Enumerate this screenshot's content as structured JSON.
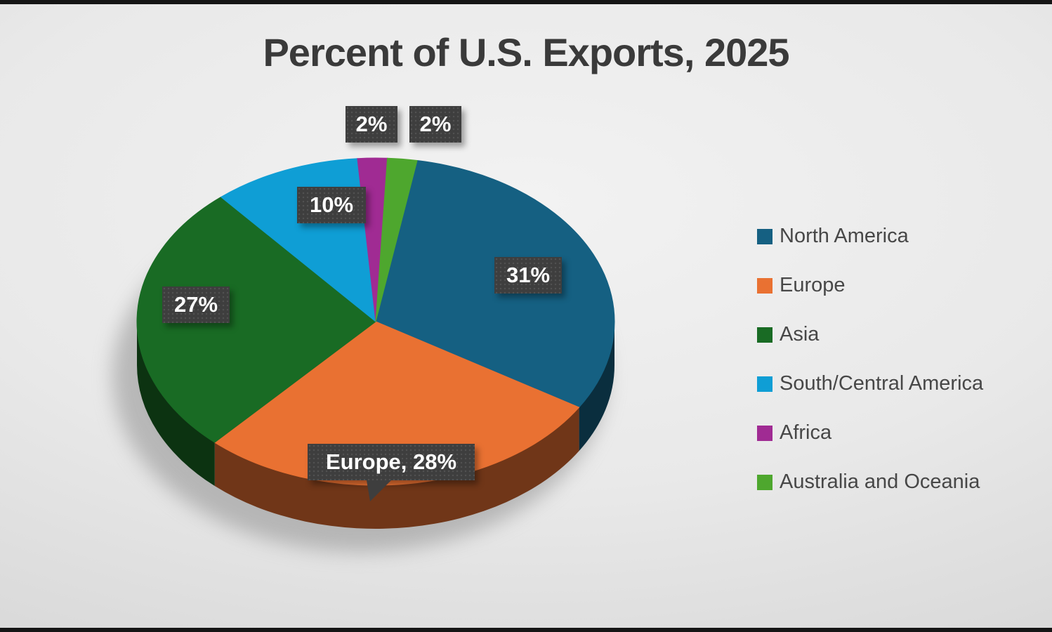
{
  "chart_data": {
    "type": "pie",
    "title": "Percent of U.S. Exports, 2025",
    "categories": [
      "North America",
      "Europe",
      "Asia",
      "South/Central America",
      "Africa",
      "Australia and Oceania"
    ],
    "values": [
      31,
      28,
      27,
      10,
      2,
      2
    ],
    "unit": "%",
    "labels": [
      "31%",
      "Europe, 28%",
      "27%",
      "10%",
      "2%",
      "2%"
    ],
    "colors": [
      "#156082",
      "#E97132",
      "#196B24",
      "#0F9ED5",
      "#A02B93",
      "#4EA72E"
    ],
    "legend_position": "right",
    "style": "3d-pie",
    "label_style": "dark-patterned-boxes"
  }
}
